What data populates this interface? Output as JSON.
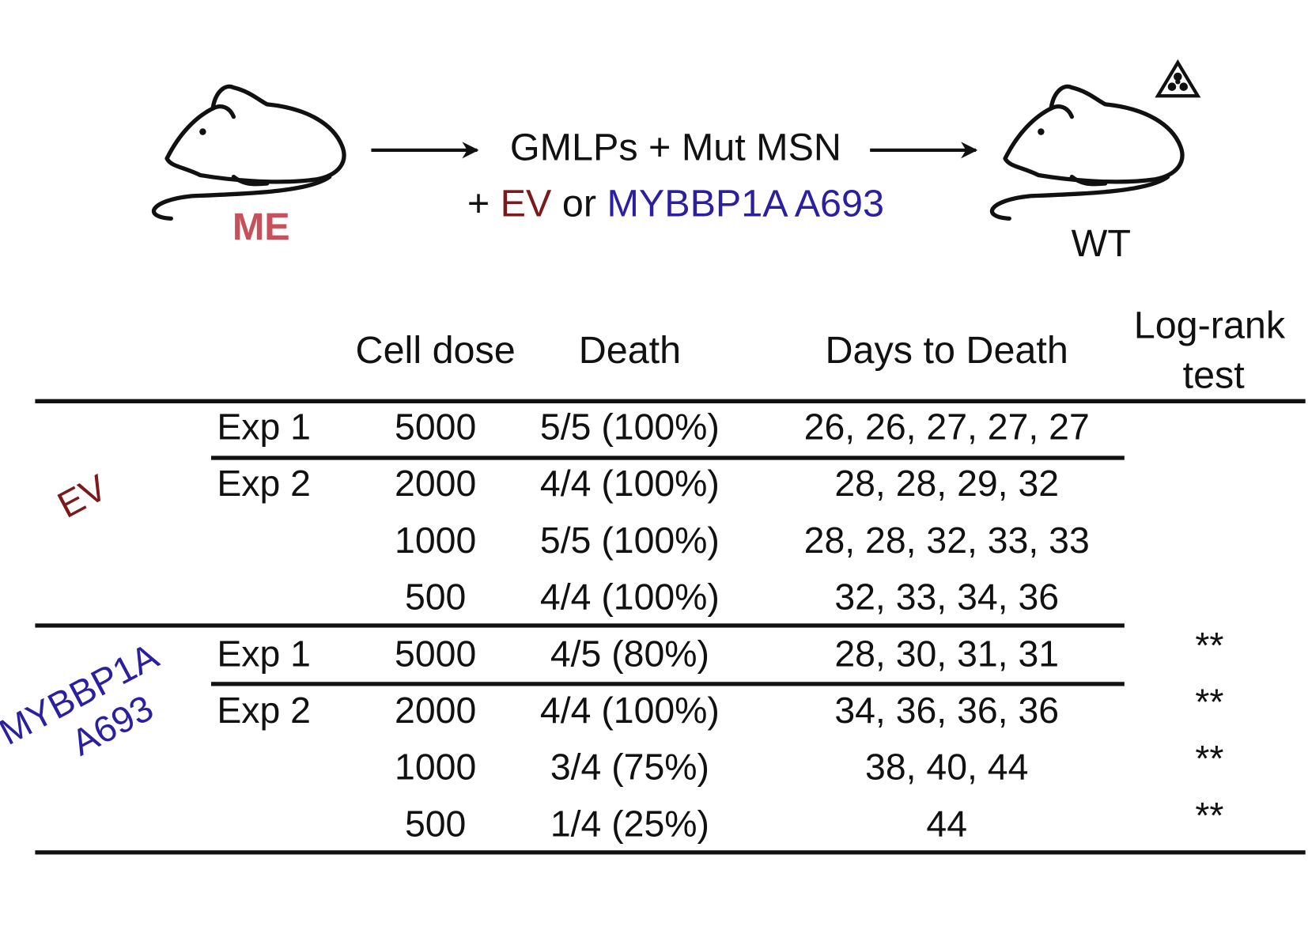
{
  "diagram": {
    "donor": "ME",
    "step1": "GMLPs + Mut MSN",
    "step2": {
      "plus": "+",
      "ev": "EV",
      "or": "or",
      "mybbp1a": "MYBBP1A A693"
    },
    "recipient": "WT"
  },
  "table": {
    "headers": {
      "dose": "Cell dose",
      "death": "Death",
      "days": "Days to Death",
      "test": [
        "Log-rank",
        "test"
      ]
    },
    "groups": [
      {
        "label": [
          "EV"
        ],
        "rows": [
          {
            "exp": "Exp 1",
            "dose": "5000",
            "death": "5/5 (100%)",
            "days": "26, 26, 27, 27, 27"
          },
          {
            "exp": "Exp 2",
            "dose": "2000",
            "death": "4/4 (100%)",
            "days": "28, 28, 29, 32"
          },
          {
            "dose": "1000",
            "death": "5/5 (100%)",
            "days": "28, 28, 32, 33, 33"
          },
          {
            "dose": "500",
            "death": "4/4 (100%)",
            "days": "32, 33, 34, 36"
          }
        ]
      },
      {
        "label": [
          "MYBBP1A",
          "A693"
        ],
        "rows": [
          {
            "exp": "Exp 1",
            "dose": "5000",
            "death": "4/5 (80%)",
            "days": "28, 30, 31, 31",
            "test": "**"
          },
          {
            "exp": "Exp 2",
            "dose": "2000",
            "death": "4/4 (100%)",
            "days": "34, 36, 36, 36",
            "test": "**"
          },
          {
            "dose": "1000",
            "death": "3/4 (75%)",
            "days": "38, 40, 44",
            "test": "**"
          },
          {
            "dose": "500",
            "death": "1/4 (25%)",
            "days": "44",
            "test": "**"
          }
        ]
      }
    ]
  }
}
